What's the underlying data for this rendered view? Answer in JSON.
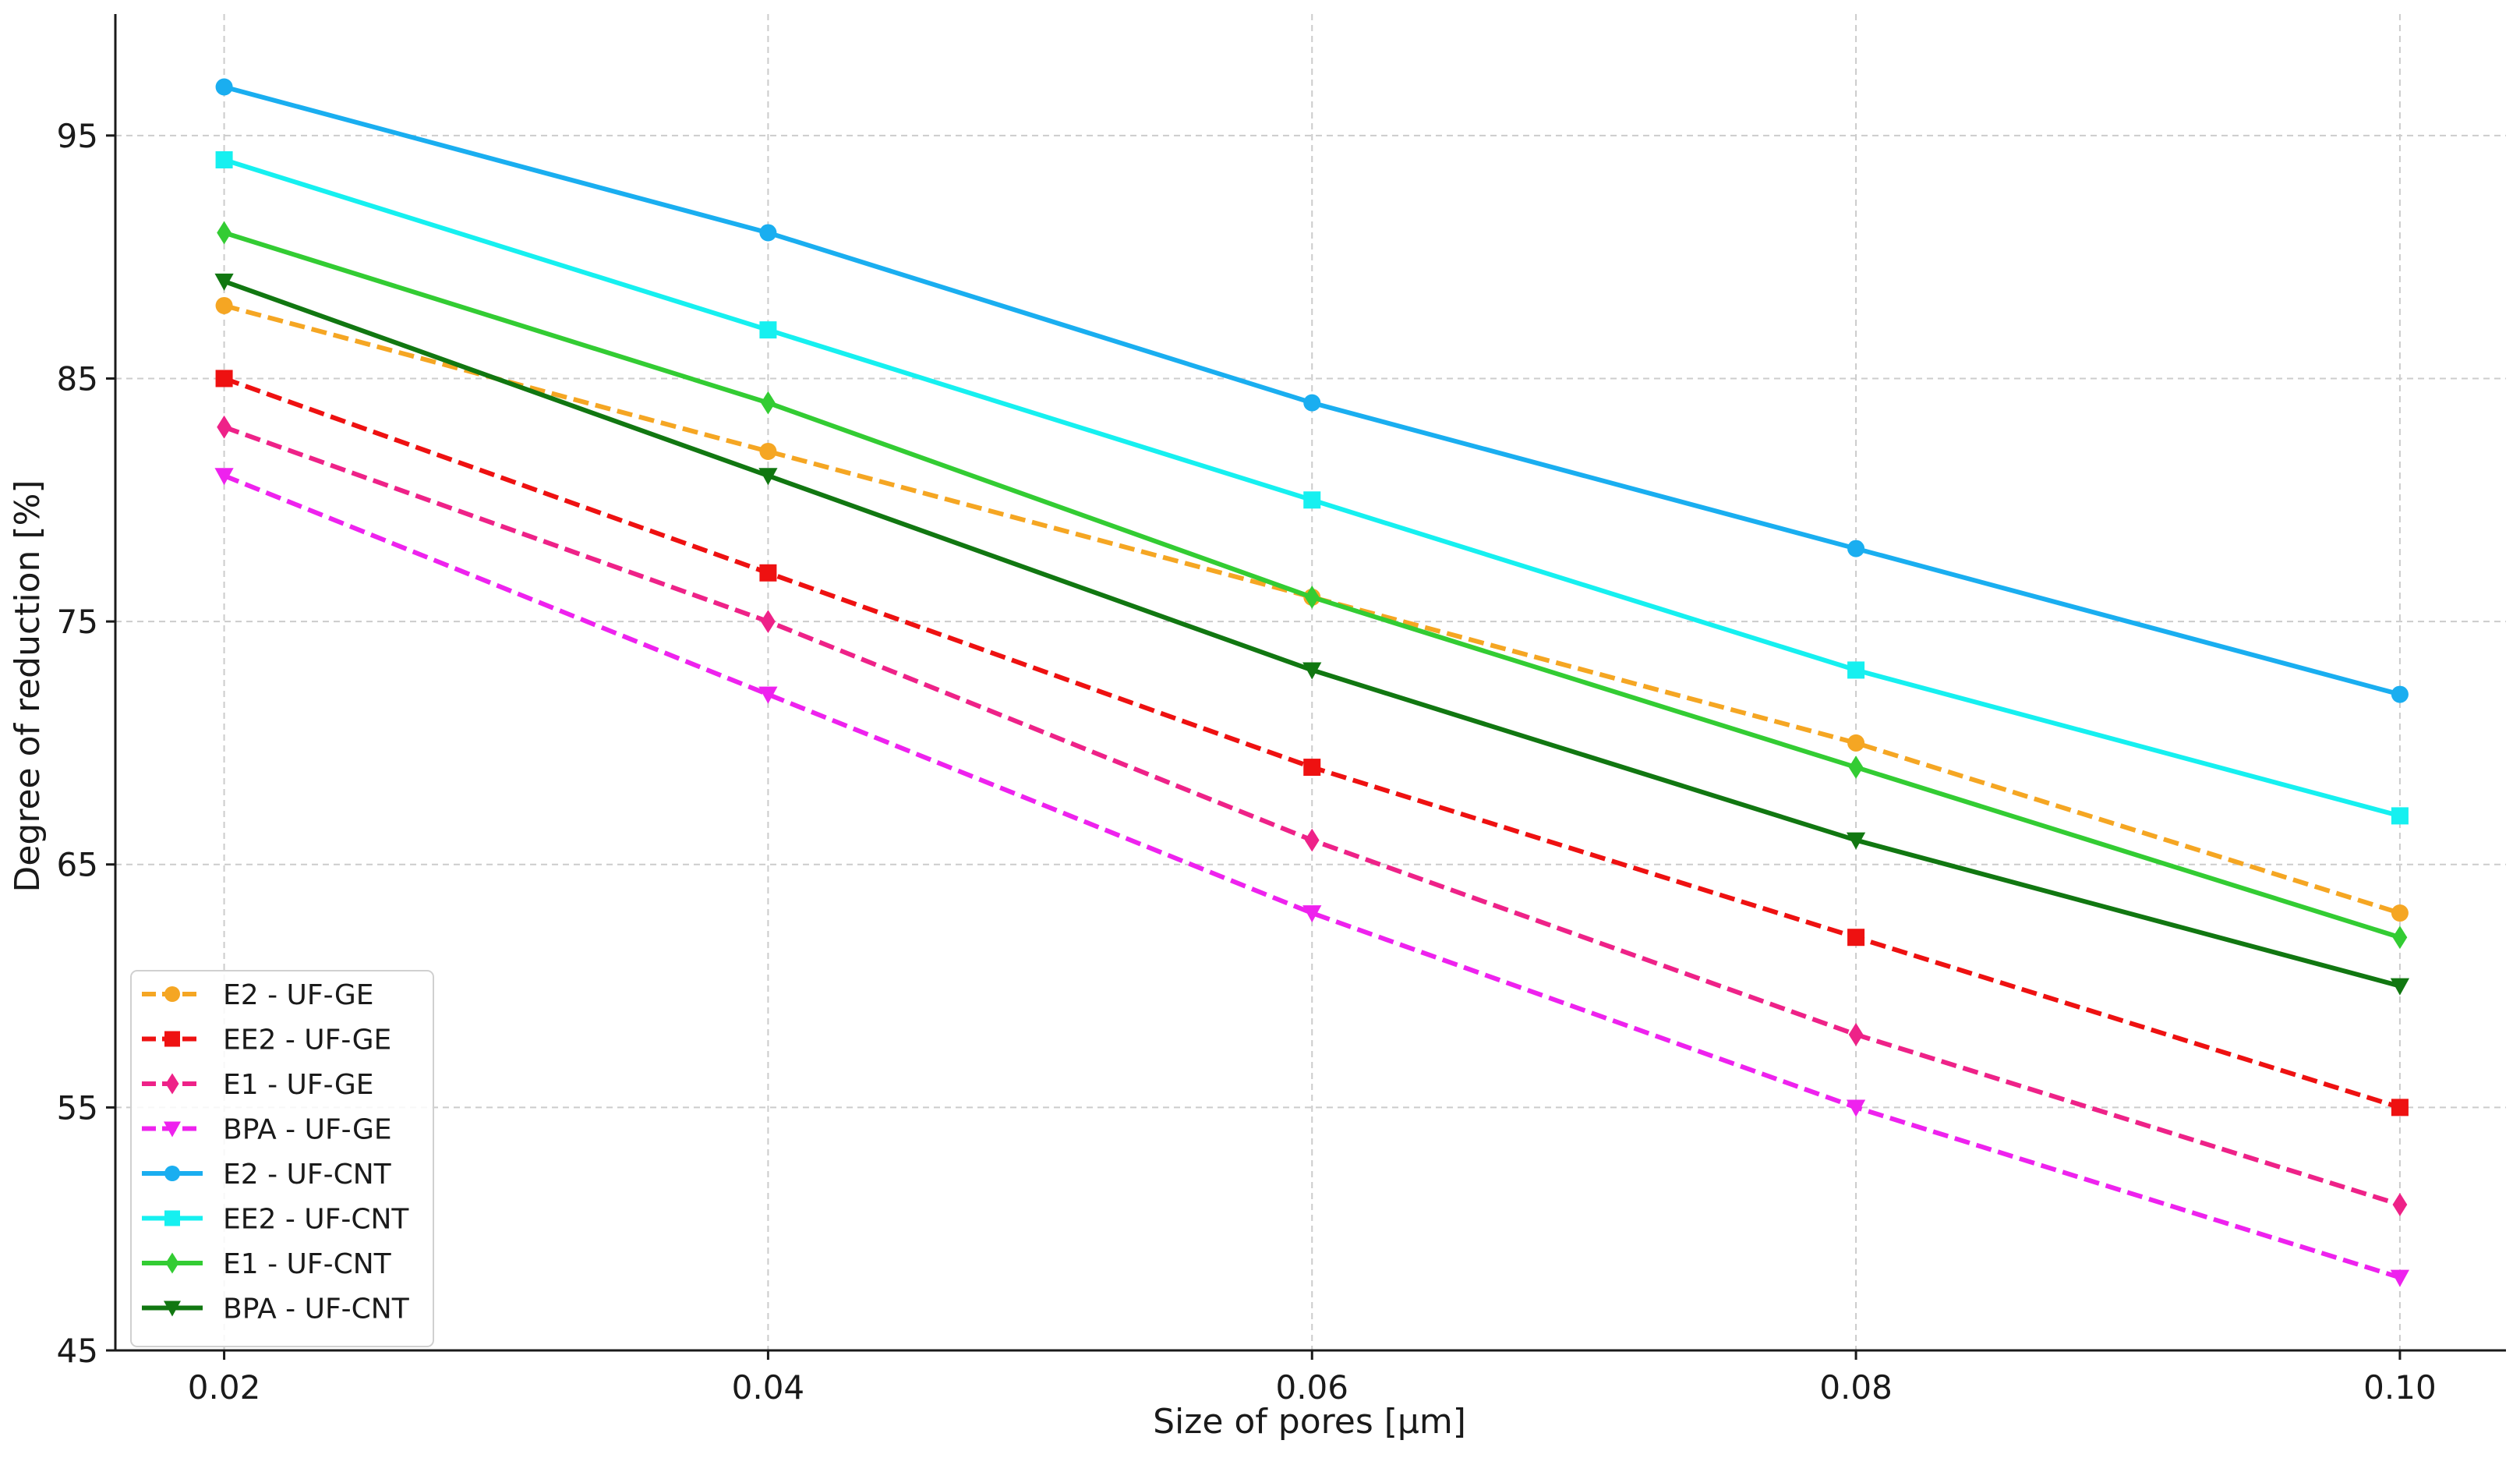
{
  "chart_data": {
    "type": "line",
    "title": "",
    "xlabel": "Size of pores [µm]",
    "ylabel": "Degree of reduction [%]",
    "x": [
      0.02,
      0.04,
      0.06,
      0.08,
      0.1
    ],
    "x_tick_labels": [
      "0.02",
      "0.04",
      "0.06",
      "0.08",
      "0.10"
    ],
    "y_ticks": [
      45,
      55,
      65,
      75,
      85,
      95
    ],
    "y_tick_labels": [
      "45",
      "55",
      "65",
      "75",
      "85",
      "95"
    ],
    "xlim": [
      0.016,
      0.1039
    ],
    "ylim": [
      45,
      100
    ],
    "grid": true,
    "legend_position": "lower-left",
    "series": [
      {
        "name": "E2 - UF-GE",
        "values": [
          88,
          82,
          76,
          70,
          63
        ],
        "color": "#f5a623",
        "dash": true,
        "marker": "circle"
      },
      {
        "name": "EE2 - UF-GE",
        "values": [
          85,
          77,
          69,
          62,
          55
        ],
        "color": "#ee1111",
        "dash": true,
        "marker": "square"
      },
      {
        "name": "E1 - UF-GE",
        "values": [
          83,
          75,
          66,
          58,
          51
        ],
        "color": "#ee2288",
        "dash": true,
        "marker": "diamond"
      },
      {
        "name": "BPA - UF-GE",
        "values": [
          81,
          72,
          63,
          55,
          48
        ],
        "color": "#ee22ee",
        "dash": true,
        "marker": "triangle-down"
      },
      {
        "name": "E2 - UF-CNT",
        "values": [
          97,
          91,
          84,
          78,
          72
        ],
        "color": "#1aaef0",
        "dash": false,
        "marker": "circle"
      },
      {
        "name": "EE2 - UF-CNT",
        "values": [
          94,
          87,
          80,
          73,
          67
        ],
        "color": "#16f0f0",
        "dash": false,
        "marker": "square"
      },
      {
        "name": "E1 - UF-CNT",
        "values": [
          91,
          84,
          76,
          69,
          62
        ],
        "color": "#33cc33",
        "dash": false,
        "marker": "diamond"
      },
      {
        "name": "BPA - UF-CNT",
        "values": [
          89,
          81,
          73,
          66,
          60
        ],
        "color": "#117711",
        "dash": false,
        "marker": "triangle-down"
      }
    ]
  }
}
